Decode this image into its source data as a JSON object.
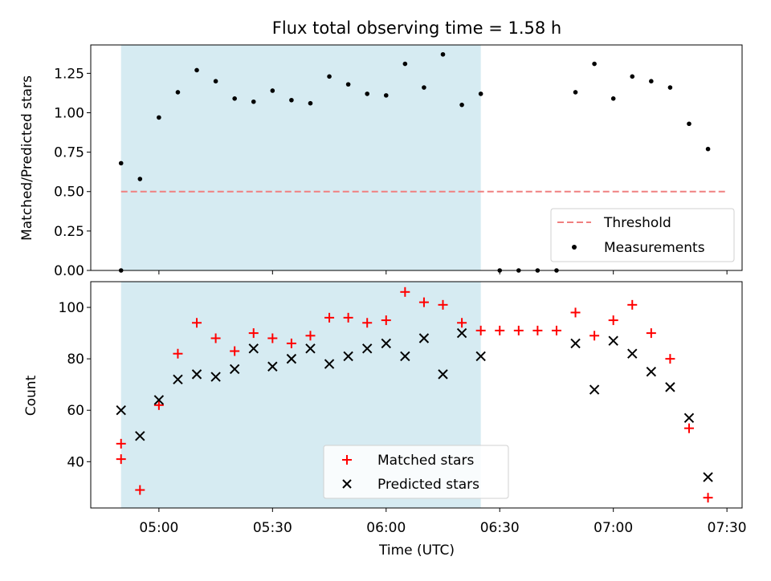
{
  "chart_data": [
    {
      "type": "scatter",
      "title": "Flux total observing time = 1.58 h",
      "xlabel": "",
      "ylabel": "Matched/Predicted stars",
      "xlim": [
        "04:42",
        "07:34"
      ],
      "ylim": [
        0,
        1.43
      ],
      "x_ticks": [
        "05:00",
        "05:30",
        "06:00",
        "06:30",
        "07:00",
        "07:30"
      ],
      "y_ticks": [
        "0.00",
        "0.25",
        "0.50",
        "0.75",
        "1.00",
        "1.25"
      ],
      "shaded_region": {
        "x_start": "04:50",
        "x_end": "06:25",
        "color": "#add8e6"
      },
      "threshold": {
        "name": "Threshold",
        "y": 0.5,
        "x_start": "04:50",
        "x_end": "07:30",
        "color": "#f08080",
        "style": "dashed"
      },
      "legend": {
        "location": "lower-right",
        "entries": [
          "Threshold",
          "Measurements"
        ]
      },
      "series": [
        {
          "name": "Measurements",
          "color": "#000000",
          "marker": "dot",
          "x": [
            "04:50",
            "04:50",
            "04:55",
            "05:00",
            "05:05",
            "05:10",
            "05:15",
            "05:20",
            "05:25",
            "05:30",
            "05:35",
            "05:40",
            "05:45",
            "05:50",
            "05:55",
            "06:00",
            "06:05",
            "06:10",
            "06:15",
            "06:20",
            "06:25",
            "06:30",
            "06:35",
            "06:40",
            "06:45",
            "06:50",
            "06:55",
            "07:00",
            "07:05",
            "07:10",
            "07:15",
            "07:20",
            "07:25"
          ],
          "y": [
            0.0,
            0.68,
            0.58,
            0.97,
            1.13,
            1.27,
            1.2,
            1.09,
            1.07,
            1.14,
            1.08,
            1.06,
            1.23,
            1.18,
            1.12,
            1.11,
            1.31,
            1.16,
            1.37,
            1.05,
            1.12,
            0.0,
            0.0,
            0.0,
            0.0,
            1.13,
            1.31,
            1.09,
            1.23,
            1.2,
            1.16,
            0.93,
            0.77
          ]
        }
      ]
    },
    {
      "type": "scatter",
      "title": "",
      "xlabel": "Time (UTC)",
      "ylabel": "Count",
      "xlim": [
        "04:42",
        "07:34"
      ],
      "ylim": [
        22,
        110
      ],
      "x_ticks": [
        "05:00",
        "05:30",
        "06:00",
        "06:30",
        "07:00",
        "07:30"
      ],
      "y_ticks": [
        "40",
        "60",
        "80",
        "100"
      ],
      "shaded_region": {
        "x_start": "04:50",
        "x_end": "06:25",
        "color": "#add8e6"
      },
      "legend": {
        "location": "lower-center",
        "entries": [
          "Matched stars",
          "Predicted stars"
        ]
      },
      "series": [
        {
          "name": "Matched stars",
          "color": "#ff0000",
          "marker": "plus",
          "x": [
            "04:50",
            "04:50",
            "04:55",
            "05:00",
            "05:05",
            "05:10",
            "05:15",
            "05:20",
            "05:25",
            "05:30",
            "05:35",
            "05:40",
            "05:45",
            "05:50",
            "05:55",
            "06:00",
            "06:05",
            "06:10",
            "06:15",
            "06:20",
            "06:25",
            "06:30",
            "06:35",
            "06:40",
            "06:45",
            "06:50",
            "06:55",
            "07:00",
            "07:05",
            "07:10",
            "07:15",
            "07:20",
            "07:25"
          ],
          "y": [
            47,
            41,
            29,
            62,
            82,
            94,
            88,
            83,
            90,
            88,
            86,
            89,
            96,
            96,
            94,
            95,
            106,
            102,
            101,
            94,
            91,
            91,
            91,
            91,
            91,
            98,
            89,
            95,
            101,
            90,
            80,
            53,
            26
          ]
        },
        {
          "name": "Predicted stars",
          "color": "#000000",
          "marker": "x",
          "x": [
            "04:50",
            "04:55",
            "05:00",
            "05:05",
            "05:10",
            "05:15",
            "05:20",
            "05:25",
            "05:30",
            "05:35",
            "05:40",
            "05:45",
            "05:50",
            "05:55",
            "06:00",
            "06:05",
            "06:10",
            "06:15",
            "06:20",
            "06:25",
            "06:50",
            "06:55",
            "07:00",
            "07:05",
            "07:10",
            "07:15",
            "07:20",
            "07:25"
          ],
          "y": [
            60,
            50,
            64,
            72,
            74,
            73,
            76,
            84,
            77,
            80,
            84,
            78,
            81,
            84,
            86,
            81,
            88,
            74,
            90,
            81,
            86,
            68,
            87,
            82,
            75,
            69,
            57,
            34
          ]
        }
      ]
    }
  ]
}
